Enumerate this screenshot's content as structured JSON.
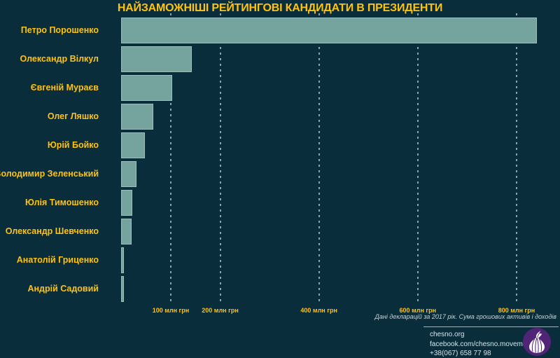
{
  "title": "НАЙЗАМОЖНІШІ РЕЙТИНГОВІ КАНДИДАТИ В ПРЕЗИДЕНТИ",
  "chart_data": {
    "type": "bar",
    "orientation": "horizontal",
    "title": "НАЙЗАМОЖНІШІ РЕЙТИНГОВІ КАНДИДАТИ В ПРЕЗИДЕНТИ",
    "categories": [
      "Петро Порошенко",
      "Олександр Вілкул",
      "Євгеній Мураєв",
      "Олег Ляшко",
      "Юрій Бойко",
      "Володимир Зеленський",
      "Юлія Тимошенко",
      "Олександр Шевченко",
      "Анатолій Гриценко",
      "Андрій Садовий"
    ],
    "values": [
      841,
      142,
      103,
      64,
      48,
      31,
      22,
      21,
      5.5,
      4.5
    ],
    "unit": "млн грн",
    "x_ticks": [
      {
        "value": 100,
        "label": "100 млн грн"
      },
      {
        "value": 200,
        "label": "200 млн грн"
      },
      {
        "value": 400,
        "label": "400 млн грн"
      },
      {
        "value": 600,
        "label": "600 млн грн"
      },
      {
        "value": 800,
        "label": "800 млн грн"
      }
    ],
    "xlim": [
      0,
      888
    ],
    "grid": "dashed-vertical",
    "legend": "none",
    "bar_color": "#74a49d",
    "text_color": "#ffc20e",
    "background_color": "#0a2d3c"
  },
  "footnote": "Дані декларацій за 2017 рік. Сума грошових активів і доходів",
  "footer": {
    "website": "chesno.org",
    "facebook": "facebook.com/chesno.movement",
    "phone": "+38(067) 658 77 98",
    "logo": "garlic-icon",
    "logo_color": "#522478"
  }
}
